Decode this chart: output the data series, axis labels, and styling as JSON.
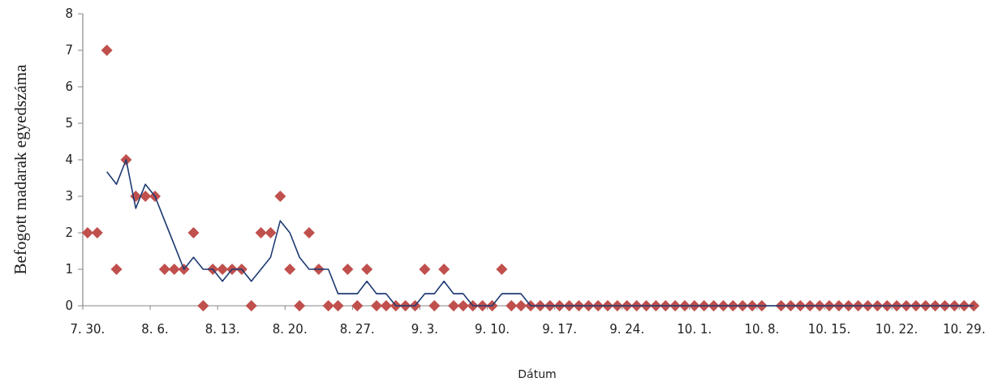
{
  "chart_data": {
    "type": "scatter",
    "xlabel": "Dátum",
    "ylabel": "Befogott madarak egyedszáma",
    "categories": [
      "7. 30.",
      null,
      null,
      null,
      null,
      null,
      null,
      "8. 6.",
      null,
      null,
      null,
      null,
      null,
      null,
      "8. 13.",
      null,
      null,
      null,
      null,
      null,
      null,
      "8. 20.",
      null,
      null,
      null,
      null,
      null,
      null,
      "8. 27.",
      null,
      null,
      null,
      null,
      null,
      null,
      "9. 3.",
      null,
      null,
      null,
      null,
      null,
      null,
      "9. 10.",
      null,
      null,
      null,
      null,
      null,
      null,
      "9. 17.",
      null,
      null,
      null,
      null,
      null,
      null,
      "9. 24.",
      null,
      null,
      null,
      null,
      null,
      null,
      "10. 1.",
      null,
      null,
      null,
      null,
      null,
      null,
      "10. 8.",
      null,
      null,
      null,
      null,
      null,
      null,
      "10. 15.",
      null,
      null,
      null,
      null,
      null,
      null,
      "10. 22.",
      null,
      null,
      null,
      null,
      null,
      null,
      "10. 29.",
      null
    ],
    "series": [
      {
        "marker": "diamond",
        "color": "#c0504d",
        "values": [
          2,
          2,
          7,
          1,
          4,
          3,
          3,
          3,
          1,
          1,
          1,
          2,
          0,
          1,
          1,
          1,
          1,
          0,
          2,
          2,
          3,
          1,
          0,
          2,
          1,
          0,
          0,
          1,
          0,
          1,
          0,
          0,
          0,
          0,
          0,
          1,
          0,
          1,
          0,
          0,
          0,
          0,
          0,
          1,
          0,
          0,
          0,
          0,
          0,
          0,
          0,
          0,
          0,
          0,
          0,
          0,
          0,
          0,
          0,
          0,
          0,
          0,
          0,
          0,
          0,
          0,
          0,
          0,
          0,
          0,
          0,
          null,
          0,
          0,
          0,
          0,
          0,
          0,
          0,
          0,
          0,
          0,
          0,
          0,
          0,
          0,
          0,
          0,
          0,
          0,
          0,
          0,
          0
        ]
      },
      {
        "type": "line",
        "marker": "none",
        "line_style": "solid",
        "color": "#1f3b73",
        "values": [
          null,
          null,
          3.67,
          3.33,
          4,
          2.67,
          3.33,
          3,
          2.33,
          1.67,
          1,
          1.33,
          1,
          1,
          0.67,
          1,
          1,
          0.67,
          1,
          1.33,
          2.33,
          2,
          1.33,
          1,
          1,
          1,
          0.33,
          0.33,
          0.33,
          0.67,
          0.33,
          0.33,
          0,
          0,
          0,
          0.33,
          0.33,
          0.67,
          0.33,
          0.33,
          0,
          0,
          0,
          0.33,
          0.33,
          0.33,
          0,
          0,
          0,
          0,
          0,
          0,
          0,
          0,
          0,
          0,
          0,
          0,
          0,
          0,
          0,
          0,
          0,
          0,
          0,
          0,
          0,
          0,
          0,
          0,
          0,
          0,
          0,
          0,
          0,
          0,
          0,
          0,
          0,
          0,
          0,
          0,
          0,
          0,
          0,
          0,
          0,
          0,
          0,
          0,
          0,
          0,
          0
        ]
      }
    ],
    "ylim": [
      0,
      8
    ],
    "yticks": [
      0,
      1,
      2,
      3,
      4,
      5,
      6,
      7,
      8
    ],
    "grid": false
  }
}
